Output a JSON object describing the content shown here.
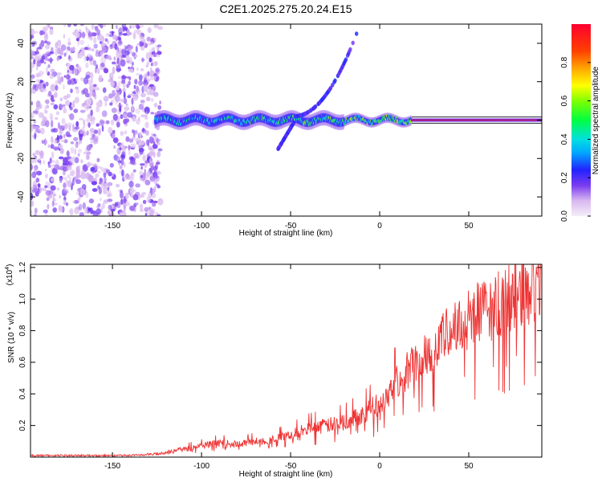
{
  "title": "C2E1.2025.275.20.24.E15",
  "chart_data": [
    {
      "type": "heatmap",
      "xlabel": "Height of straight line (km)",
      "ylabel": "Frequency (Hz)",
      "xlim": [
        -196,
        91
      ],
      "ylim": [
        -50,
        50
      ],
      "xticks": [
        -150,
        -100,
        -50,
        0,
        50
      ],
      "yticks": [
        -40,
        -20,
        0,
        20,
        40
      ],
      "colorbar": {
        "label": "Normalized spectral amplitude",
        "range": [
          0,
          1
        ],
        "ticks": [
          "0.0",
          "0.2",
          "0.4",
          "0.6",
          "0.8"
        ],
        "tick_values": [
          0.0,
          0.2,
          0.4,
          0.6,
          0.8
        ]
      },
      "features": [
        {
          "name": "broadband-noise",
          "x_range": [
            -196,
            -126
          ],
          "y_range": [
            -50,
            50
          ],
          "amplitude": 0.1
        },
        {
          "name": "main-band",
          "x_range": [
            -126,
            91
          ],
          "center_y": 0,
          "amplitude_start": 0.3,
          "amplitude_end": 1.0
        },
        {
          "name": "upper-branch",
          "x_start": -48,
          "y_start": 2,
          "x_end": -13,
          "y_end": 45,
          "amplitude": 0.3
        },
        {
          "name": "lower-branch",
          "x_start": -48,
          "y_start": -1,
          "x_end": -57,
          "y_end": -15,
          "amplitude": 0.35
        }
      ]
    },
    {
      "type": "line",
      "xlabel": "Height of straight line (km)",
      "ylabel": "SNR (10 * v/v)",
      "y_multiplier": "(x10",
      "y_multiplier_exp": "4",
      "y_multiplier_close": ")",
      "xlim": [
        -196,
        91
      ],
      "ylim": [
        0,
        1.22
      ],
      "xticks": [
        -150,
        -100,
        -50,
        0,
        50
      ],
      "yticks": [
        "0.2",
        "0.4",
        "0.6",
        "0.8",
        "1.0",
        "1.2"
      ],
      "ytick_values": [
        0.2,
        0.4,
        0.6,
        0.8,
        1.0,
        1.2
      ],
      "color": "#ee3333",
      "series": [
        {
          "name": "SNR",
          "x": [
            -196,
            -180,
            -160,
            -140,
            -125,
            -115,
            -100,
            -90,
            -80,
            -70,
            -60,
            -50,
            -40,
            -30,
            -20,
            -10,
            0,
            10,
            20,
            30,
            40,
            50,
            60,
            70,
            80,
            91
          ],
          "y": [
            0.01,
            0.01,
            0.01,
            0.01,
            0.02,
            0.04,
            0.07,
            0.09,
            0.08,
            0.1,
            0.11,
            0.14,
            0.18,
            0.2,
            0.22,
            0.27,
            0.34,
            0.48,
            0.6,
            0.7,
            0.8,
            0.88,
            0.93,
            0.98,
            1.05,
            1.12
          ]
        }
      ]
    }
  ]
}
